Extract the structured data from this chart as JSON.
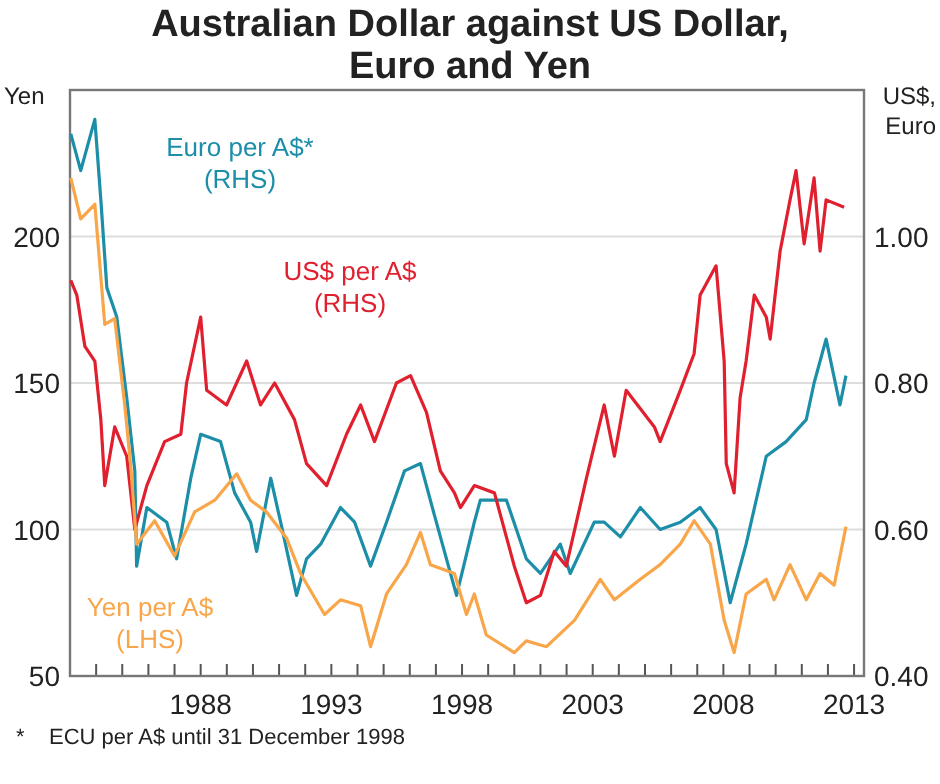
{
  "chart_data": {
    "type": "line",
    "title": "Australian Dollar against US Dollar, Euro and Yen",
    "ylabel": "Yen",
    "y2label": "US$, Euro",
    "xlim": [
      1983,
      2013.38
    ],
    "xticks": [
      {
        "value": 1984,
        "label": null
      },
      {
        "value": 1985,
        "label": null
      },
      {
        "value": 1986,
        "label": null
      },
      {
        "value": 1987,
        "label": null
      },
      1988,
      {
        "value": 1989,
        "label": null
      },
      {
        "value": 1990,
        "label": null
      },
      {
        "value": 1991,
        "label": null
      },
      {
        "value": 1992,
        "label": null
      },
      1993,
      {
        "value": 1994,
        "label": null
      },
      {
        "value": 1995,
        "label": null
      },
      {
        "value": 1996,
        "label": null
      },
      {
        "value": 1997,
        "label": null
      },
      1998,
      {
        "value": 1999,
        "label": null
      },
      {
        "value": 2000,
        "label": null
      },
      {
        "value": 2001,
        "label": null
      },
      {
        "value": 2002,
        "label": null
      },
      2003,
      {
        "value": 2004,
        "label": null
      },
      {
        "value": 2005,
        "label": null
      },
      {
        "value": 2006,
        "label": null
      },
      {
        "value": 2007,
        "label": null
      },
      2008,
      {
        "value": 2009,
        "label": null
      },
      {
        "value": 2010,
        "label": null
      },
      {
        "value": 2011,
        "label": null
      },
      {
        "value": 2012,
        "label": null
      },
      2013
    ],
    "ylim": [
      50,
      250
    ],
    "yticks": [
      50,
      100,
      150,
      200
    ],
    "y2lim": [
      0.4,
      1.2
    ],
    "y2ticks": [
      {
        "value": 0.4,
        "label": "0.40"
      },
      {
        "value": 0.6,
        "label": "0.60"
      },
      {
        "value": 0.8,
        "label": "0.80"
      },
      {
        "value": 1.0,
        "label": "1.00"
      }
    ],
    "grid": "y",
    "series": [
      {
        "name": "Euro per A$* (RHS)",
        "color": "#1c8ea8",
        "axis": "y2",
        "x": [
          1983.03,
          1983.41,
          1983.95,
          1984.18,
          1984.41,
          1984.79,
          1985.17,
          1985.48,
          1985.55,
          1985.94,
          1986.7,
          1987.08,
          1987.62,
          1988.0,
          1988.76,
          1989.3,
          1989.91,
          1990.14,
          1990.68,
          1991.06,
          1991.67,
          1992.05,
          1992.59,
          1993.35,
          1993.89,
          1994.5,
          1995.11,
          1995.8,
          1996.41,
          1996.94,
          1997.79,
          1998.47,
          1998.7,
          1999.7,
          2000.46,
          2001.0,
          2001.76,
          2002.14,
          2003.06,
          2003.44,
          2004.06,
          2004.82,
          2005.58,
          2006.35,
          2007.11,
          2007.72,
          2008.26,
          2008.87,
          2009.64,
          2010.4,
          2011.17,
          2011.47,
          2011.93,
          2012.46,
          2012.69
        ],
        "values": [
          1.14,
          1.09,
          1.16,
          1.05,
          0.93,
          0.89,
          0.78,
          0.68,
          0.55,
          0.63,
          0.61,
          0.56,
          0.67,
          0.73,
          0.72,
          0.65,
          0.61,
          0.57,
          0.67,
          0.61,
          0.51,
          0.56,
          0.58,
          0.63,
          0.61,
          0.55,
          0.61,
          0.68,
          0.69,
          0.62,
          0.51,
          0.61,
          0.64,
          0.64,
          0.56,
          0.54,
          0.58,
          0.54,
          0.61,
          0.61,
          0.59,
          0.63,
          0.6,
          0.61,
          0.63,
          0.6,
          0.5,
          0.58,
          0.7,
          0.72,
          0.75,
          0.8,
          0.86,
          0.77,
          0.81
        ]
      },
      {
        "name": "US$ per A$ (RHS)",
        "color": "#e0202e",
        "axis": "y2",
        "x": [
          1983.03,
          1983.26,
          1983.57,
          1983.95,
          1984.18,
          1984.33,
          1984.71,
          1985.17,
          1985.48,
          1985.94,
          1986.62,
          1987.24,
          1987.46,
          1988.0,
          1988.23,
          1988.99,
          1989.76,
          1990.29,
          1990.83,
          1991.59,
          1992.05,
          1992.82,
          1993.58,
          1994.12,
          1994.65,
          1995.49,
          1996.03,
          1996.64,
          1997.17,
          1997.71,
          1997.94,
          1998.47,
          1999.24,
          2000.0,
          2000.46,
          2001.0,
          2001.53,
          2001.99,
          2002.76,
          2003.44,
          2003.83,
          2004.28,
          2005.36,
          2005.58,
          2006.35,
          2006.88,
          2007.11,
          2007.72,
          2008.03,
          2008.11,
          2008.41,
          2008.64,
          2008.87,
          2009.18,
          2009.64,
          2009.79,
          2010.17,
          2010.55,
          2010.78,
          2011.09,
          2011.47,
          2011.7,
          2011.93,
          2012.62
        ],
        "values": [
          0.94,
          0.92,
          0.85,
          0.83,
          0.75,
          0.66,
          0.74,
          0.7,
          0.6,
          0.66,
          0.72,
          0.73,
          0.8,
          0.89,
          0.79,
          0.77,
          0.83,
          0.77,
          0.8,
          0.75,
          0.69,
          0.66,
          0.73,
          0.77,
          0.72,
          0.8,
          0.81,
          0.76,
          0.68,
          0.65,
          0.63,
          0.66,
          0.65,
          0.55,
          0.5,
          0.51,
          0.57,
          0.55,
          0.67,
          0.77,
          0.7,
          0.79,
          0.74,
          0.72,
          0.79,
          0.84,
          0.92,
          0.96,
          0.83,
          0.69,
          0.65,
          0.78,
          0.83,
          0.92,
          0.89,
          0.86,
          0.98,
          1.05,
          1.09,
          0.99,
          1.08,
          0.98,
          1.05,
          1.04
        ]
      },
      {
        "name": "Yen per A$ (LHS)",
        "color": "#f9a64a",
        "x": [
          1983.03,
          1983.41,
          1983.95,
          1984.33,
          1984.71,
          1985.1,
          1985.32,
          1985.55,
          1986.24,
          1987.0,
          1987.77,
          1988.54,
          1989.38,
          1989.91,
          1990.52,
          1991.29,
          1991.82,
          1992.74,
          1993.35,
          1994.12,
          1994.5,
          1995.11,
          1995.87,
          1996.41,
          1996.79,
          1997.71,
          1998.17,
          1998.47,
          1998.93,
          2000.0,
          2000.46,
          2001.23,
          2002.3,
          2003.29,
          2003.83,
          2004.82,
          2005.58,
          2006.35,
          2006.88,
          2007.5,
          2008.03,
          2008.41,
          2008.87,
          2009.64,
          2009.94,
          2010.55,
          2011.17,
          2011.7,
          2012.24,
          2012.69
        ],
        "values": [
          220,
          206,
          211,
          170,
          172,
          142,
          122,
          95,
          103,
          91,
          106,
          110,
          119,
          110,
          106,
          97,
          85,
          71,
          76,
          74,
          60,
          78,
          88,
          99,
          88,
          85,
          71,
          78,
          64,
          58,
          62,
          60,
          69,
          83,
          76,
          83,
          88,
          95,
          103,
          95,
          69,
          58,
          78,
          83,
          76,
          88,
          76,
          85,
          81,
          101
        ]
      }
    ],
    "annotations": [
      "*    ECU per A$ until 31 December 1998"
    ]
  }
}
